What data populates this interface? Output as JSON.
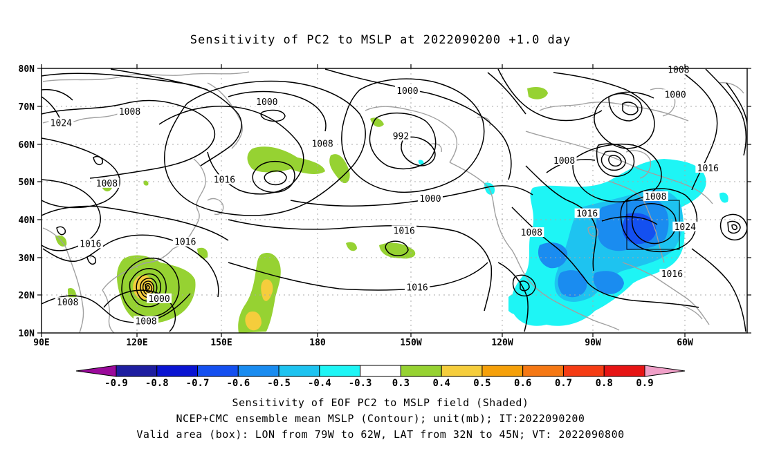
{
  "title": "Sensitivity of PC2 to MSLP at 2022090200 +1.0 day",
  "map": {
    "lat_ticks": [
      "80N",
      "70N",
      "60N",
      "50N",
      "40N",
      "30N",
      "20N",
      "10N"
    ],
    "lon_ticks": [
      "90E",
      "120E",
      "150E",
      "180",
      "150W",
      "120W",
      "90W",
      "60W"
    ],
    "contour_labels": [
      {
        "text": "1008",
        "lon": -75,
        "lat": 79.5
      },
      {
        "text": "1000",
        "lon": -158,
        "lat": 74
      },
      {
        "text": "1000",
        "lon": -76,
        "lat": 73
      },
      {
        "text": "1000",
        "lon": 159,
        "lat": 71
      },
      {
        "text": "1008",
        "lon": 117,
        "lat": 68.5
      },
      {
        "text": "1024",
        "lon": 96,
        "lat": 65.5
      },
      {
        "text": "992",
        "lon": -160,
        "lat": 62
      },
      {
        "text": "1008",
        "lon": 176,
        "lat": 60
      },
      {
        "text": "1008",
        "lon": -110,
        "lat": 55.5
      },
      {
        "text": "1016",
        "lon": -66,
        "lat": 53.5
      },
      {
        "text": "1016",
        "lon": 146,
        "lat": 50.5
      },
      {
        "text": "1008",
        "lon": 110,
        "lat": 49.5
      },
      {
        "text": "1000",
        "lon": -151,
        "lat": 45.5
      },
      {
        "text": "1008",
        "lon": -82,
        "lat": 46
      },
      {
        "text": "1016",
        "lon": -103,
        "lat": 41.5
      },
      {
        "text": "1016",
        "lon": -159,
        "lat": 37
      },
      {
        "text": "1024",
        "lon": -73,
        "lat": 38
      },
      {
        "text": "1008",
        "lon": -120,
        "lat": 36.5
      },
      {
        "text": "1016",
        "lon": 105,
        "lat": 33.5
      },
      {
        "text": "1016",
        "lon": 134,
        "lat": 34
      },
      {
        "text": "1016",
        "lon": -155,
        "lat": 22
      },
      {
        "text": "1016",
        "lon": -77,
        "lat": 25.5
      },
      {
        "text": "1000",
        "lon": 126,
        "lat": 19
      },
      {
        "text": "1008",
        "lon": 98,
        "lat": 18
      },
      {
        "text": "1008",
        "lon": 122,
        "lat": 13
      }
    ],
    "valid_box": {
      "lon_min": -79,
      "lon_max": -62,
      "lat_min": 32,
      "lat_max": 45
    }
  },
  "colorbar": {
    "labels": [
      "-0.9",
      "-0.8",
      "-0.7",
      "-0.6",
      "-0.5",
      "-0.4",
      "-0.3",
      "0.3",
      "0.4",
      "0.5",
      "0.6",
      "0.7",
      "0.8",
      "0.9"
    ],
    "colors": [
      "#9b0a9b",
      "#1e1ea0",
      "#0a14d2",
      "#1450f0",
      "#1a8cf0",
      "#1ec3f0",
      "#1ef5f5",
      "#ffffff",
      "#96d232",
      "#f5cd3c",
      "#f5a00a",
      "#f57814",
      "#f53c14",
      "#e61414",
      "#f0a0c8"
    ]
  },
  "captions": [
    "Sensitivity of EOF PC2 to MSLP field (Shaded)",
    "NCEP+CMC ensemble mean MSLP (Contour); unit(mb); IT:2022090200",
    "Valid area (box): LON from 79W to 62W, LAT from 32N to 45N; VT: 2022090800"
  ]
}
